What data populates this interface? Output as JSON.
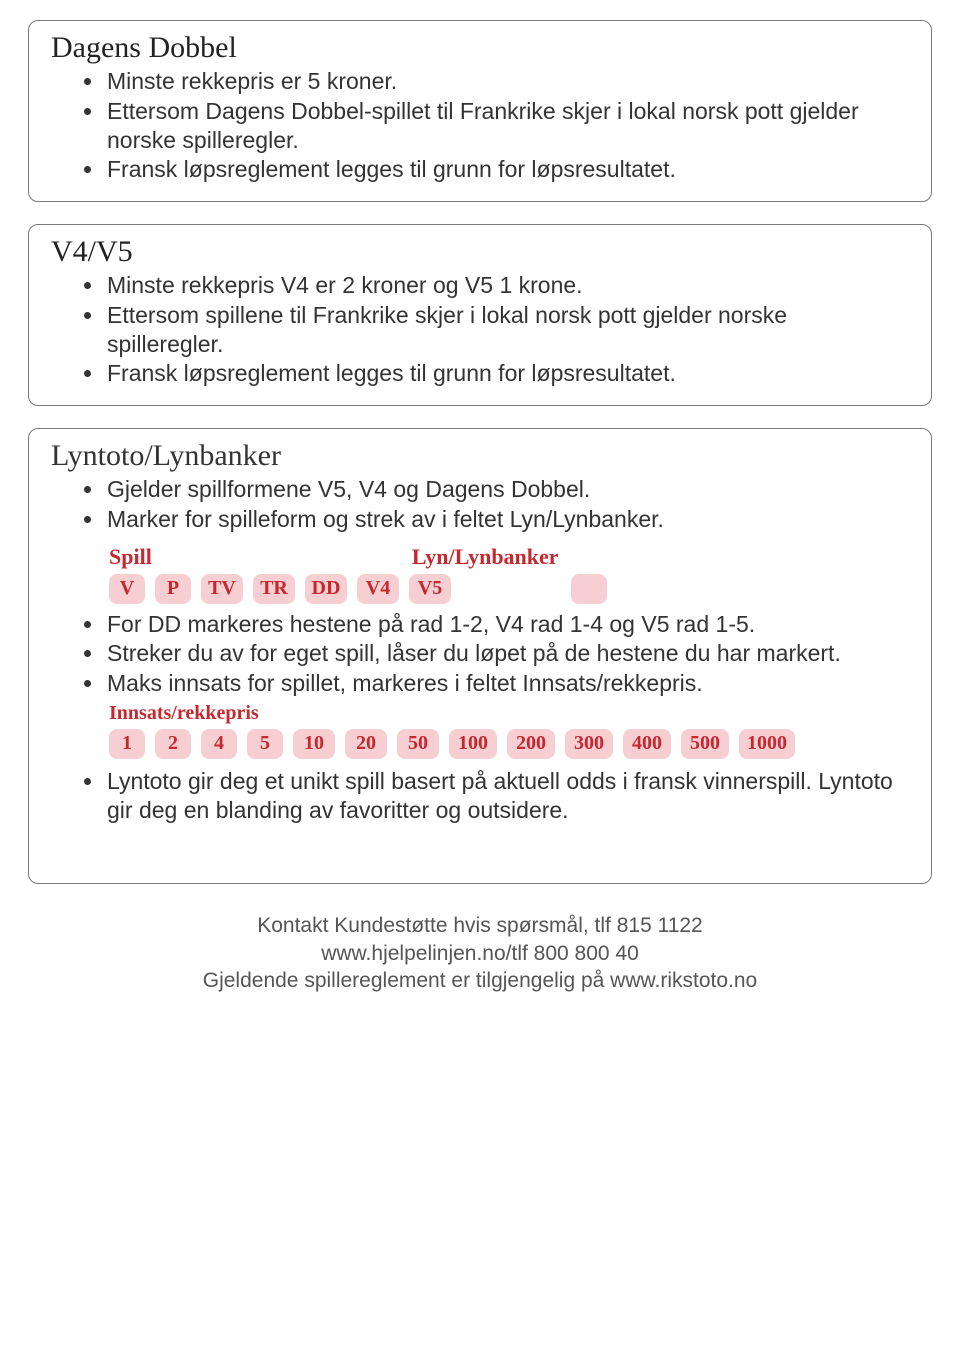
{
  "colors": {
    "border": "#7a7a7a",
    "text": "#333333",
    "accent": "#c5282e",
    "chip_bg": "#f7cfd2",
    "background": "#ffffff"
  },
  "sections": {
    "dagens": {
      "title": "Dagens Dobbel",
      "items": [
        "Minste rekkepris er 5 kroner.",
        "Ettersom Dagens Dobbel-spillet til Frankrike skjer i lokal norsk pott gjelder norske spilleregler.",
        "Fransk løpsreglement legges til grunn for løpsresultatet."
      ]
    },
    "v4v5": {
      "title": "V4/V5",
      "items": [
        "Minste rekkepris V4 er 2 kroner og V5 1 krone.",
        "Ettersom spillene til Frankrike skjer i lokal norsk pott gjelder norske spilleregler.",
        "Fransk løpsreglement legges til grunn for løpsresultatet."
      ]
    },
    "lyn": {
      "title": "Lyntoto/Lynbanker",
      "items_top": [
        "Gjelder spillformene V5, V4 og Dagens Dobbel.",
        "Marker for spilleform og strek av i feltet Lyn/Lynbanker."
      ],
      "spill_header": "Spill",
      "lyn_header": "Lyn/Lynbanker",
      "spill_chips": [
        "V",
        "P",
        "TV",
        "TR",
        "DD",
        "V4",
        "V5"
      ],
      "items_mid": [
        "For DD markeres hestene på rad 1-2, V4 rad 1-4 og V5 rad 1-5.",
        "Streker du av for eget spill, låser du løpet på de hestene du har markert.",
        "Maks innsats for spillet, markeres i feltet Innsats/rekkepris."
      ],
      "innsats_header": "Innsats/rekkepris",
      "innsats_chips": [
        "1",
        "2",
        "4",
        "5",
        "10",
        "20",
        "50",
        "100",
        "200",
        "300",
        "400",
        "500",
        "1000"
      ],
      "items_bot": [
        "Lyntoto gir deg et unikt spill basert på aktuell odds i fransk vinnerspill. Lyntoto gir deg en blanding av favoritter og outsidere."
      ]
    }
  },
  "footer": {
    "line1": "Kontakt Kundestøtte hvis spørsmål, tlf 815 1122",
    "line2": "www.hjelpelinjen.no/tlf 800 800 40",
    "line3": "Gjeldende spillereglement er tilgjengelig på www.rikstoto.no"
  }
}
